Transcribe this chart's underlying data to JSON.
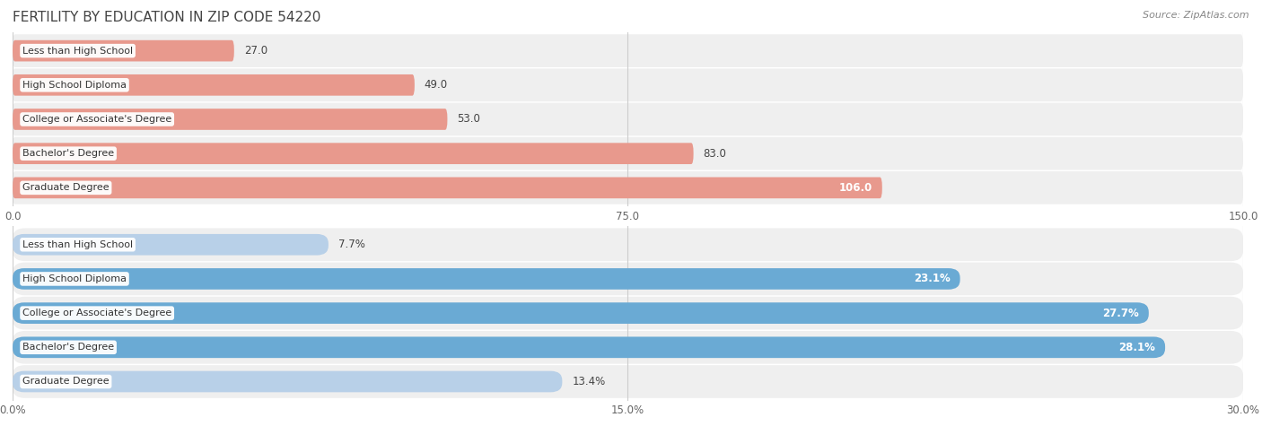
{
  "title": "FERTILITY BY EDUCATION IN ZIP CODE 54220",
  "source": "Source: ZipAtlas.com",
  "categories": [
    "Less than High School",
    "High School Diploma",
    "College or Associate's Degree",
    "Bachelor's Degree",
    "Graduate Degree"
  ],
  "values_abs": [
    27.0,
    49.0,
    53.0,
    83.0,
    106.0
  ],
  "values_pct": [
    7.7,
    23.1,
    27.7,
    28.1,
    13.4
  ],
  "abs_xlim": [
    0,
    150.0
  ],
  "abs_xticks": [
    0.0,
    75.0,
    150.0
  ],
  "pct_xlim": [
    0,
    30.0
  ],
  "pct_xticks": [
    0.0,
    15.0,
    30.0
  ],
  "bar_color_abs": "#e8998d",
  "bar_color_pct_light": "#b8d0e8",
  "bar_color_pct_dark": "#6aaad4",
  "row_bg": "#efefef",
  "title_color": "#444444",
  "source_color": "#888888",
  "grid_color": "#cccccc",
  "bar_height": 0.62,
  "title_fontsize": 11,
  "label_fontsize": 8,
  "tick_fontsize": 8.5,
  "value_fontsize": 8.5
}
